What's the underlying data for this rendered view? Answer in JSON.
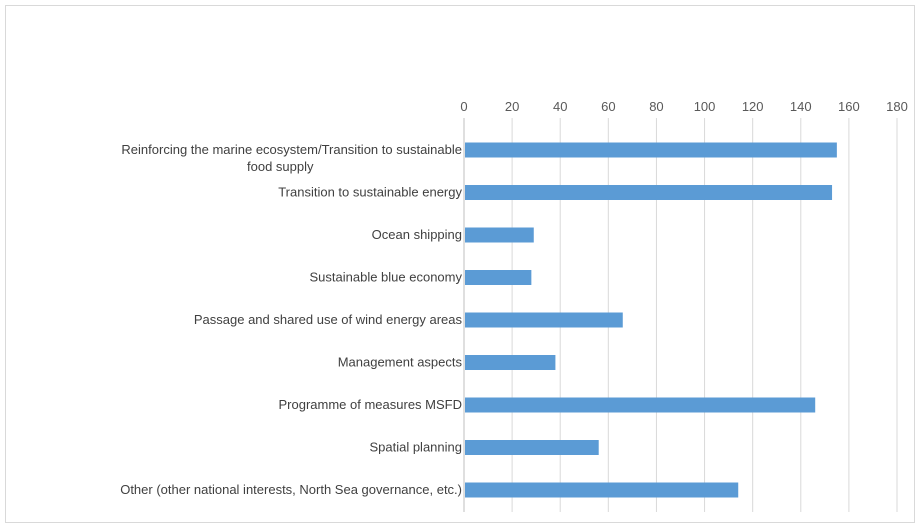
{
  "chart_data": {
    "type": "bar",
    "orientation": "horizontal",
    "title": "",
    "xlabel": "",
    "ylabel": "",
    "xlim": [
      0,
      180
    ],
    "x_ticks": [
      0,
      20,
      40,
      60,
      80,
      100,
      120,
      140,
      160,
      180
    ],
    "x_axis_position": "top",
    "grid": true,
    "legend": "none",
    "categories": [
      "Reinforcing the marine ecosystem/Transition to sustainable food supply",
      "Transition to sustainable energy",
      "Ocean shipping",
      "Sustainable blue economy",
      "Passage and shared use of wind energy areas",
      "Management aspects",
      "Programme of measures MSFD",
      "Spatial planning",
      "Other (other national interests, North Sea governance, etc.)"
    ],
    "category_lines": [
      [
        "Reinforcing the marine ecosystem/Transition to sustainable",
        "food supply"
      ],
      [
        "Transition to sustainable energy"
      ],
      [
        "Ocean shipping"
      ],
      [
        "Sustainable blue economy"
      ],
      [
        "Passage and shared use of wind energy areas"
      ],
      [
        "Management aspects"
      ],
      [
        "Programme of measures MSFD"
      ],
      [
        "Spatial planning"
      ],
      [
        "Other (other national interests, North Sea governance, etc.)"
      ]
    ],
    "values": [
      155,
      153,
      29,
      28,
      66,
      38,
      146,
      56,
      114
    ],
    "bar_color": "#5b9bd5"
  }
}
